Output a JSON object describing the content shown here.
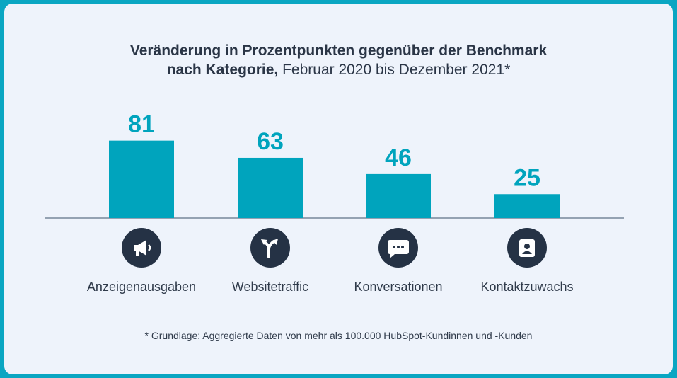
{
  "chart_data": {
    "type": "bar",
    "title_bold": "Veränderung in Prozentpunkten gegenüber der Benchmark nach Kategorie,",
    "title_light": "Februar 2020 bis Dezember 2021*",
    "categories": [
      "Anzeigenausgaben",
      "Websitetraffic",
      "Konversationen",
      "Kontaktzuwachs"
    ],
    "values": [
      81,
      63,
      46,
      25
    ],
    "value_labels": [
      "81",
      "63",
      "46",
      "25"
    ],
    "icons": [
      "megaphone-icon",
      "fork-arrows-icon",
      "chat-bubble-icon",
      "contact-card-icon"
    ],
    "bar_color": "#00a4bd",
    "value_label_color": "#00a4bd",
    "grid": false,
    "legend": "none"
  },
  "title": {
    "line1": "Veränderung in Prozentpunkten gegenüber der Benchmark",
    "line2_bold": "nach Kategorie,",
    "line2_light": " Februar 2020 bis Dezember 2021*"
  },
  "footnote": "* Grundlage: Aggregierte Daten von mehr als 100.000 HubSpot-Kundinnen und -Kunden",
  "colors": {
    "frame": "#0aa6c2",
    "card": "#eef3fb",
    "icon_bg": "#253245",
    "text": "#2a3546"
  }
}
